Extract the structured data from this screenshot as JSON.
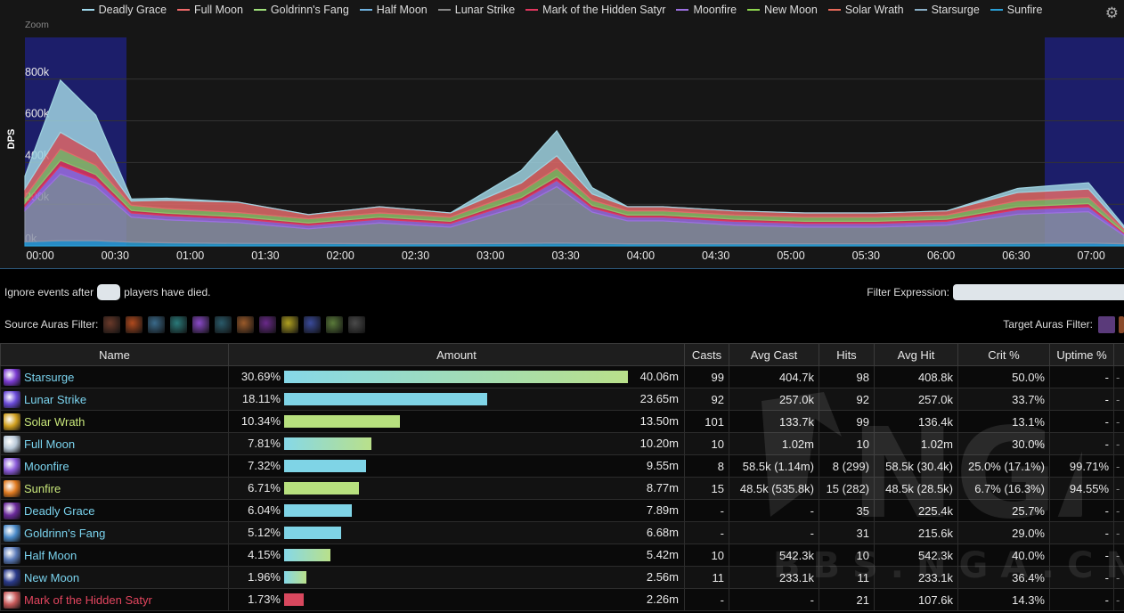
{
  "chart": {
    "legend": [
      {
        "name": "Deadly Grace",
        "color": "#9fd9ec"
      },
      {
        "name": "Full Moon",
        "color": "#f06a6a"
      },
      {
        "name": "Goldrinn's Fang",
        "color": "#9fe07a"
      },
      {
        "name": "Half Moon",
        "color": "#6fb2e0"
      },
      {
        "name": "Lunar Strike",
        "color": "#8a8a8a"
      },
      {
        "name": "Mark of the Hidden Satyr",
        "color": "#e0365e"
      },
      {
        "name": "Moonfire",
        "color": "#9b6fe0"
      },
      {
        "name": "New Moon",
        "color": "#8ed64f"
      },
      {
        "name": "Solar Wrath",
        "color": "#e86a5a"
      },
      {
        "name": "Starsurge",
        "color": "#8ab0c8"
      },
      {
        "name": "Sunfire",
        "color": "#2a9fd6"
      }
    ],
    "zoom_label": "Zoom",
    "y_label": "DPS",
    "y_ticks": [
      "0k",
      "200k",
      "400k",
      "600k",
      "800k"
    ],
    "x_ticks": [
      "00:00",
      "00:30",
      "01:00",
      "01:30",
      "02:00",
      "02:30",
      "03:00",
      "03:30",
      "04:00",
      "04:30",
      "05:00",
      "05:30",
      "06:00",
      "06:30",
      "07:00"
    ],
    "gear_icon": "gear-icon",
    "colors": {
      "highlight": "#1c1e6a",
      "grid": "#333333",
      "accent": "#2e5a7e"
    }
  },
  "chart_data": {
    "type": "area",
    "ylabel": "DPS",
    "ylim": [
      0,
      1000000
    ],
    "x_seconds": [
      0,
      15,
      30,
      45,
      60,
      90,
      120,
      150,
      180,
      210,
      225,
      240,
      255,
      270,
      300,
      330,
      360,
      390,
      420,
      450,
      465
    ],
    "series": [
      {
        "name": "Sunfire",
        "values": [
          20000,
          25000,
          25000,
          18000,
          15000,
          12000,
          12000,
          10000,
          10000,
          12000,
          14000,
          12000,
          10000,
          10000,
          10000,
          10000,
          10000,
          10000,
          12000,
          14000,
          10000
        ]
      },
      {
        "name": "Lunar Strike",
        "values": [
          150000,
          320000,
          260000,
          120000,
          110000,
          100000,
          70000,
          100000,
          80000,
          180000,
          270000,
          150000,
          110000,
          110000,
          90000,
          80000,
          80000,
          90000,
          140000,
          150000,
          40000
        ]
      },
      {
        "name": "Moonfire",
        "values": [
          20000,
          40000,
          35000,
          20000,
          20000,
          18000,
          18000,
          18000,
          18000,
          25000,
          30000,
          20000,
          18000,
          18000,
          18000,
          18000,
          18000,
          18000,
          22000,
          24000,
          10000
        ]
      },
      {
        "name": "Mark of the Hidden Satyr",
        "values": [
          15000,
          25000,
          22000,
          12000,
          12000,
          10000,
          10000,
          10000,
          10000,
          15000,
          18000,
          12000,
          10000,
          10000,
          10000,
          10000,
          10000,
          10000,
          14000,
          15000,
          6000
        ]
      },
      {
        "name": "Goldrinn's Fang",
        "values": [
          30000,
          55000,
          45000,
          25000,
          22000,
          20000,
          20000,
          20000,
          20000,
          30000,
          40000,
          25000,
          20000,
          20000,
          20000,
          20000,
          20000,
          20000,
          28000,
          30000,
          10000
        ]
      },
      {
        "name": "Full Moon",
        "values": [
          40000,
          80000,
          60000,
          20000,
          40000,
          50000,
          20000,
          30000,
          20000,
          40000,
          60000,
          30000,
          20000,
          20000,
          20000,
          20000,
          20000,
          20000,
          40000,
          40000,
          10000
        ]
      },
      {
        "name": "Deadly Grace",
        "values": [
          60000,
          250000,
          180000,
          10000,
          10000,
          0,
          0,
          0,
          0,
          60000,
          120000,
          30000,
          0,
          0,
          0,
          0,
          0,
          0,
          20000,
          30000,
          10000
        ]
      }
    ]
  },
  "filters": {
    "ignore_before": "Ignore events after",
    "ignore_after": "players have died.",
    "filter_expression": "Filter Expression:",
    "source_auras": "Source Auras Filter:",
    "target_auras": "Target Auras Filter:",
    "source_icons": [
      "#6a3a2a",
      "#b04a1e",
      "#3a6a8a",
      "#2a7a7a",
      "#8a4ac8",
      "#2a5a6a",
      "#9a5a2a",
      "#6a2a8a",
      "#b0a020",
      "#3a4a9a",
      "#5a7a3a",
      "#4a4a4a"
    ]
  },
  "table": {
    "headers": {
      "name": "Name",
      "amount": "Amount",
      "casts": "Casts",
      "avg_cast": "Avg Cast",
      "hits": "Hits",
      "avg_hit": "Avg Hit",
      "crit": "Crit %",
      "uptime": "Uptime %"
    },
    "rows": [
      {
        "name": "Starsurge",
        "name_color": "#7ad3ee",
        "icon_color": "#7a3ad0",
        "pct": "30.69%",
        "bar_pct": 30.69,
        "bar_style": "linear-gradient(90deg,#86d8e8,#b9e08a)",
        "amount": "40.06m",
        "casts": "99",
        "avg_cast": "404.7k",
        "hits": "98",
        "avg_hit": "408.8k",
        "crit": "50.0%",
        "uptime": "-"
      },
      {
        "name": "Lunar Strike",
        "name_color": "#7ad3ee",
        "icon_color": "#6a4ad8",
        "pct": "18.11%",
        "bar_pct": 18.11,
        "bar_style": "#7fd4e6",
        "amount": "23.65m",
        "casts": "92",
        "avg_cast": "257.0k",
        "hits": "92",
        "avg_hit": "257.0k",
        "crit": "33.7%",
        "uptime": "-"
      },
      {
        "name": "Solar Wrath",
        "name_color": "#c8e67a",
        "icon_color": "#d0a020",
        "pct": "10.34%",
        "bar_pct": 10.34,
        "bar_style": "#b7e07e",
        "amount": "13.50m",
        "casts": "101",
        "avg_cast": "133.7k",
        "hits": "99",
        "avg_hit": "136.4k",
        "crit": "13.1%",
        "uptime": "-"
      },
      {
        "name": "Full Moon",
        "name_color": "#7ad3ee",
        "icon_color": "#b8c8d8",
        "pct": "7.81%",
        "bar_pct": 7.81,
        "bar_style": "linear-gradient(90deg,#86d8e8,#b9e08a)",
        "amount": "10.20m",
        "casts": "10",
        "avg_cast": "1.02m",
        "hits": "10",
        "avg_hit": "1.02m",
        "crit": "30.0%",
        "uptime": "-"
      },
      {
        "name": "Moonfire",
        "name_color": "#7ad3ee",
        "icon_color": "#8a5ad8",
        "pct": "7.32%",
        "bar_pct": 7.32,
        "bar_style": "#7fd4e6",
        "amount": "9.55m",
        "casts": "8",
        "avg_cast": "58.5k (1.14m)",
        "hits": "8 (299)",
        "avg_hit": "58.5k (30.4k)",
        "crit": "25.0% (17.1%)",
        "uptime": "99.71%"
      },
      {
        "name": "Sunfire",
        "name_color": "#c8e67a",
        "icon_color": "#e07a20",
        "pct": "6.71%",
        "bar_pct": 6.71,
        "bar_style": "#b7e07e",
        "amount": "8.77m",
        "casts": "15",
        "avg_cast": "48.5k (535.8k)",
        "hits": "15 (282)",
        "avg_hit": "48.5k (28.5k)",
        "crit": "6.7% (16.3%)",
        "uptime": "94.55%"
      },
      {
        "name": "Deadly Grace",
        "name_color": "#7ad3ee",
        "icon_color": "#6a2a9a",
        "pct": "6.04%",
        "bar_pct": 6.04,
        "bar_style": "#7fd4e6",
        "amount": "7.89m",
        "casts": "-",
        "avg_cast": "-",
        "hits": "35",
        "avg_hit": "225.4k",
        "crit": "25.7%",
        "uptime": "-"
      },
      {
        "name": "Goldrinn's Fang",
        "name_color": "#7ad3ee",
        "icon_color": "#4a8ac8",
        "pct": "5.12%",
        "bar_pct": 5.12,
        "bar_style": "#7fd4e6",
        "amount": "6.68m",
        "casts": "-",
        "avg_cast": "-",
        "hits": "31",
        "avg_hit": "215.6k",
        "crit": "29.0%",
        "uptime": "-"
      },
      {
        "name": "Half Moon",
        "name_color": "#7ad3ee",
        "icon_color": "#5a7ab8",
        "pct": "4.15%",
        "bar_pct": 4.15,
        "bar_style": "linear-gradient(90deg,#86d8e8,#b9e08a)",
        "amount": "5.42m",
        "casts": "10",
        "avg_cast": "542.3k",
        "hits": "10",
        "avg_hit": "542.3k",
        "crit": "40.0%",
        "uptime": "-"
      },
      {
        "name": "New Moon",
        "name_color": "#7ad3ee",
        "icon_color": "#2a3a8a",
        "pct": "1.96%",
        "bar_pct": 1.96,
        "bar_style": "linear-gradient(90deg,#86d8e8,#b9e08a)",
        "amount": "2.56m",
        "casts": "11",
        "avg_cast": "233.1k",
        "hits": "11",
        "avg_hit": "233.1k",
        "crit": "36.4%",
        "uptime": "-"
      },
      {
        "name": "Mark of the Hidden Satyr",
        "name_color": "#e2455e",
        "icon_color": "#c85a5a",
        "pct": "1.73%",
        "bar_pct": 1.73,
        "bar_style": "#d8485e",
        "amount": "2.26m",
        "casts": "-",
        "avg_cast": "-",
        "hits": "21",
        "avg_hit": "107.6k",
        "crit": "14.3%",
        "uptime": "-"
      }
    ]
  },
  "watermark": {
    "logo_text": "NGA",
    "site": "BBS.NGA.CN"
  }
}
